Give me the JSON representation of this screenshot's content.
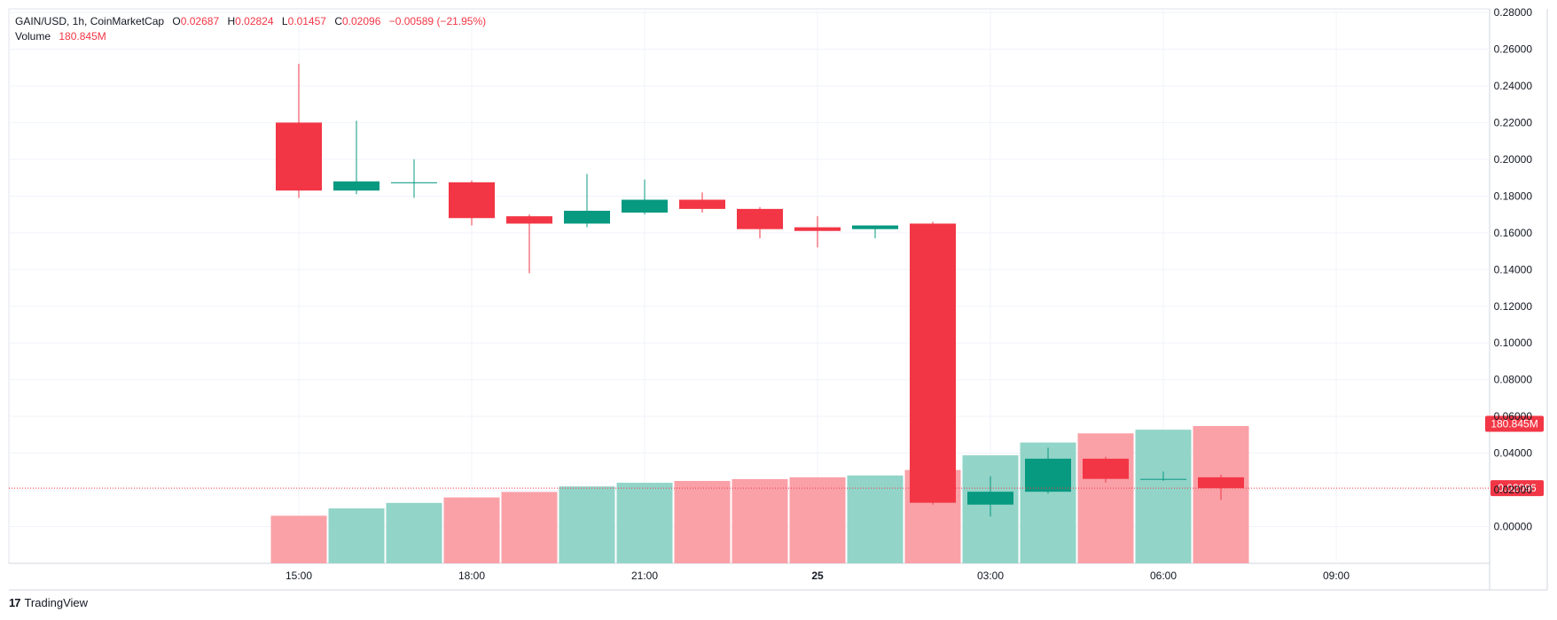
{
  "legend": {
    "symbol_line": "GAIN/USD, 1h, CoinMarketCap",
    "open_label": "O",
    "open_value": "0.02687",
    "high_label": "H",
    "high_value": "0.02824",
    "low_label": "L",
    "low_value": "0.01457",
    "close_label": "C",
    "close_value": "0.02096",
    "change_value": "−0.00589 (−21.95%)",
    "volume_label": "Volume",
    "volume_value": "180.845M"
  },
  "footer": {
    "logo_text": "17",
    "brand": "TradingView"
  },
  "colors": {
    "up": "#089981",
    "down": "#f23645",
    "vol_up": "#92d4c8",
    "vol_down": "#faa1a8",
    "grid": "#f0f3fa",
    "axis_text": "#131722"
  },
  "chart_data": {
    "type": "candlestick",
    "interval": "1h",
    "time_ticks": [
      {
        "label": "15:00",
        "bar": 0
      },
      {
        "label": "18:00",
        "bar": 3
      },
      {
        "label": "21:00",
        "bar": 6
      },
      {
        "label": "25",
        "bar": 9
      },
      {
        "label": "03:00",
        "bar": 12
      },
      {
        "label": "06:00",
        "bar": 15
      },
      {
        "label": "09:00",
        "bar": 18
      }
    ],
    "price_ticks": [
      "0.28000",
      "0.26000",
      "0.24000",
      "0.22000",
      "0.20000",
      "0.18000",
      "0.16000",
      "0.14000",
      "0.12000",
      "0.10000",
      "0.08000",
      "0.06000",
      "0.04000",
      "0.02000",
      "0.00000"
    ],
    "price_range": [
      -0.019,
      0.28
    ],
    "candles": [
      {
        "o": 0.22,
        "h": 0.252,
        "l": 0.179,
        "c": 0.183
      },
      {
        "o": 0.183,
        "h": 0.221,
        "l": 0.181,
        "c": 0.188
      },
      {
        "o": 0.187,
        "h": 0.2,
        "l": 0.179,
        "c": 0.1875
      },
      {
        "o": 0.1875,
        "h": 0.1885,
        "l": 0.164,
        "c": 0.168
      },
      {
        "o": 0.169,
        "h": 0.17,
        "l": 0.138,
        "c": 0.165
      },
      {
        "o": 0.165,
        "h": 0.192,
        "l": 0.163,
        "c": 0.172
      },
      {
        "o": 0.171,
        "h": 0.189,
        "l": 0.17,
        "c": 0.178
      },
      {
        "o": 0.178,
        "h": 0.182,
        "l": 0.171,
        "c": 0.173
      },
      {
        "o": 0.173,
        "h": 0.174,
        "l": 0.157,
        "c": 0.162
      },
      {
        "o": 0.163,
        "h": 0.169,
        "l": 0.152,
        "c": 0.161
      },
      {
        "o": 0.162,
        "h": 0.164,
        "l": 0.157,
        "c": 0.164
      },
      {
        "o": 0.165,
        "h": 0.166,
        "l": 0.012,
        "c": 0.013
      },
      {
        "o": 0.012,
        "h": 0.0275,
        "l": 0.0055,
        "c": 0.019
      },
      {
        "o": 0.019,
        "h": 0.043,
        "l": 0.018,
        "c": 0.037
      },
      {
        "o": 0.037,
        "h": 0.038,
        "l": 0.024,
        "c": 0.026
      },
      {
        "o": 0.026,
        "h": 0.03,
        "l": 0.025,
        "c": 0.026
      },
      {
        "o": 0.02687,
        "h": 0.02824,
        "l": 0.01457,
        "c": 0.02096
      }
    ],
    "volume": [
      {
        "v": 26,
        "dir": "down"
      },
      {
        "v": 30,
        "dir": "up"
      },
      {
        "v": 33,
        "dir": "up"
      },
      {
        "v": 36,
        "dir": "down"
      },
      {
        "v": 39,
        "dir": "down"
      },
      {
        "v": 42,
        "dir": "up"
      },
      {
        "v": 44,
        "dir": "up"
      },
      {
        "v": 45,
        "dir": "down"
      },
      {
        "v": 46,
        "dir": "down"
      },
      {
        "v": 47,
        "dir": "down"
      },
      {
        "v": 48,
        "dir": "up"
      },
      {
        "v": 51,
        "dir": "down"
      },
      {
        "v": 59,
        "dir": "up"
      },
      {
        "v": 66,
        "dir": "up"
      },
      {
        "v": 71,
        "dir": "down"
      },
      {
        "v": 73,
        "dir": "up"
      },
      {
        "v": 75,
        "dir": "down"
      }
    ],
    "volume_max": 75,
    "last_price": {
      "value": 0.02096,
      "label": "0.02096"
    },
    "volume_badge": {
      "label": "180.845M",
      "anchor_price": 0.056
    }
  }
}
